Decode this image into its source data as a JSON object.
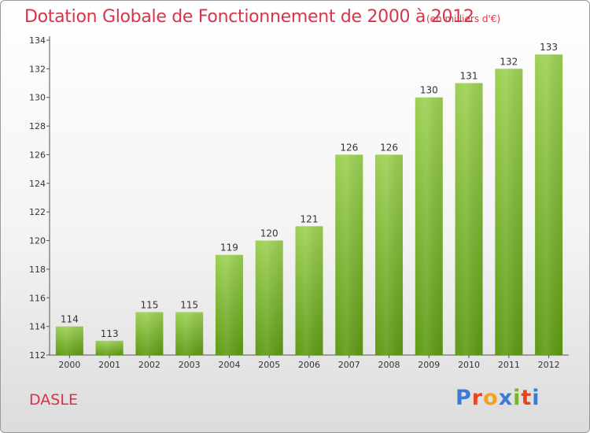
{
  "header": {
    "title": "Dotation Globale de Fonctionnement de 2000 à 2012",
    "subtitle": "(en milliers d'€)"
  },
  "footer": {
    "place": "DASLE",
    "logo": "Proxiti",
    "logo_colors": [
      "#3a7bd5",
      "#e8461f",
      "#f2a21c",
      "#3a7bd5",
      "#7bb32e",
      "#e8461f",
      "#3a7bd5"
    ]
  },
  "colors": {
    "bar_top": "#9dd154",
    "bar_bottom": "#5e9a14",
    "text": "#333333",
    "title": "#d9334a"
  },
  "chart_data": {
    "type": "bar",
    "categories": [
      "2000",
      "2001",
      "2002",
      "2003",
      "2004",
      "2005",
      "2006",
      "2007",
      "2008",
      "2009",
      "2010",
      "2011",
      "2012"
    ],
    "values": [
      114,
      113,
      115,
      115,
      119,
      120,
      121,
      126,
      126,
      130,
      131,
      132,
      133
    ],
    "data_labels": [
      "114",
      "113",
      "115",
      "115",
      "119",
      "120",
      "121",
      "126",
      "126",
      "130",
      "131",
      "132",
      "133"
    ],
    "ylim": [
      112,
      134
    ],
    "yticks": [
      112,
      114,
      116,
      118,
      120,
      122,
      124,
      126,
      128,
      130,
      132,
      134
    ],
    "ytick_labels": [
      "112",
      "114",
      "116",
      "118",
      "120",
      "122",
      "124",
      "126",
      "128",
      "130",
      "132",
      "134"
    ],
    "grid": false,
    "xlabel": "",
    "ylabel": ""
  }
}
